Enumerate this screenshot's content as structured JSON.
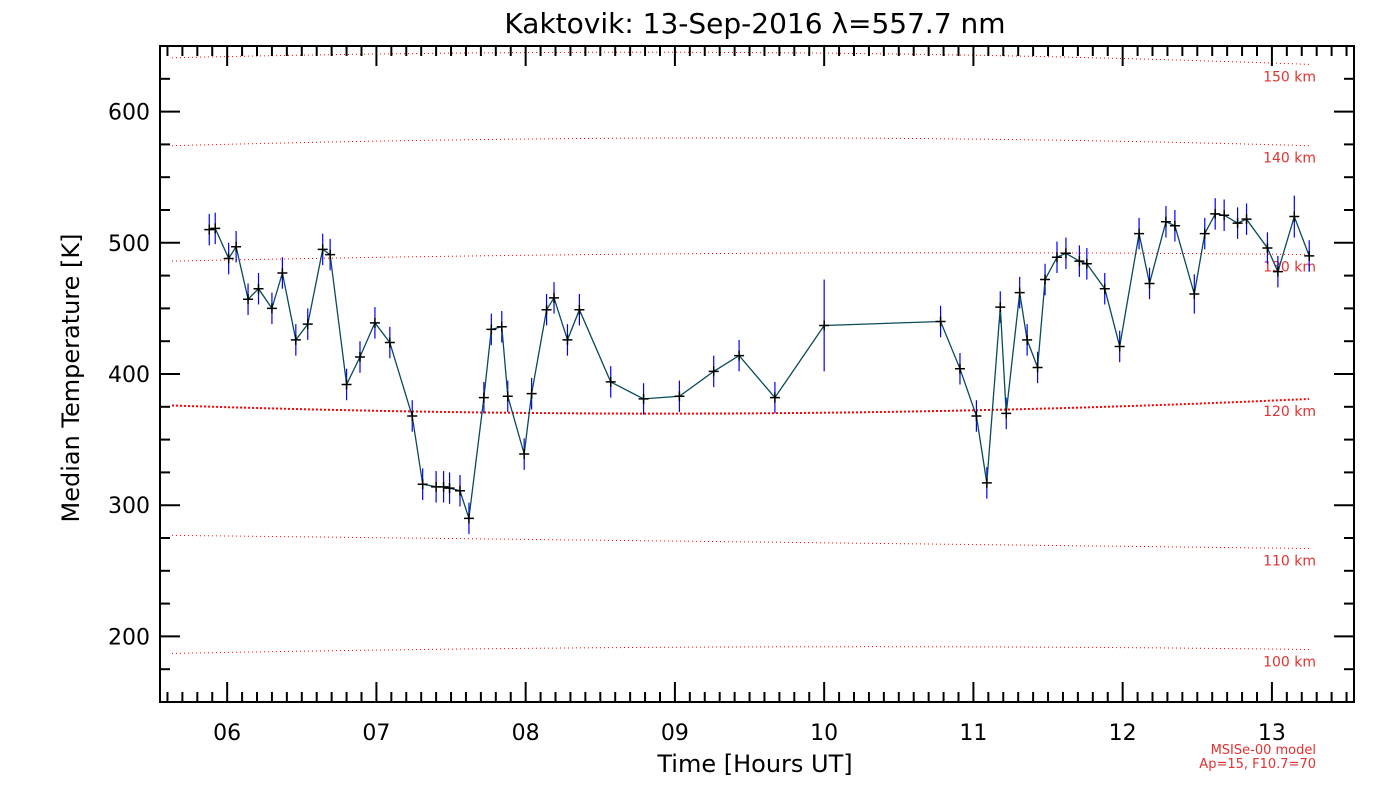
{
  "chart_data": {
    "type": "line",
    "title": "Kaktovik: 13-Sep-2016 λ=557.7 nm",
    "xlabel": "Time [Hours UT]",
    "ylabel": "Median Temperature [K]",
    "xlim": [
      5.55,
      13.55
    ],
    "ylim": [
      150,
      650
    ],
    "x_ticks": [
      6,
      7,
      8,
      9,
      10,
      11,
      12,
      13
    ],
    "x_tick_labels": [
      "06",
      "07",
      "08",
      "09",
      "10",
      "11",
      "12",
      "13"
    ],
    "y_ticks": [
      200,
      300,
      400,
      500,
      600
    ],
    "y_tick_labels": [
      "200",
      "300",
      "400",
      "500",
      "600"
    ],
    "grid": false,
    "colors": {
      "line": "#0a4a5a",
      "errorbar": "#0000ff",
      "marker": "#000000",
      "model": "#ff0000",
      "model_label": "#e23232"
    },
    "series": [
      {
        "x": [
          5.88,
          5.92,
          6.01,
          6.06,
          6.14,
          6.21,
          6.3,
          6.37,
          6.46,
          6.54,
          6.64,
          6.69,
          6.8,
          6.89,
          6.99,
          7.09,
          7.24,
          7.31,
          7.4,
          7.45,
          7.49,
          7.56,
          7.62,
          7.72,
          7.77,
          7.84,
          7.88,
          7.99,
          8.04,
          8.14,
          8.19,
          8.28,
          8.36,
          8.57,
          8.79,
          9.03,
          9.26,
          9.43,
          9.67,
          10.0,
          10.78,
          10.91,
          11.02,
          11.09,
          11.18,
          11.22,
          11.31,
          11.36,
          11.43,
          11.48,
          11.56,
          11.62,
          11.71,
          11.76,
          11.88,
          11.98,
          12.11,
          12.18,
          12.29,
          12.35,
          12.48,
          12.55,
          12.62,
          12.68,
          12.77,
          12.83,
          12.97,
          13.04,
          13.15,
          13.25
        ],
        "y": [
          510,
          511,
          488,
          497,
          457,
          465,
          450,
          477,
          426,
          438,
          495,
          491,
          392,
          413,
          439,
          424,
          368,
          316,
          314,
          314,
          313,
          311,
          290,
          382,
          434,
          436,
          383,
          339,
          385,
          449,
          458,
          426,
          449,
          394,
          381,
          383,
          402,
          414,
          382,
          437,
          440,
          404,
          368,
          317,
          451,
          370,
          462,
          426,
          405,
          472,
          489,
          492,
          486,
          484,
          465,
          421,
          507,
          469,
          516,
          513,
          461,
          507,
          522,
          521,
          515,
          518,
          496,
          478,
          520,
          490
        ],
        "err": [
          12,
          12,
          12,
          12,
          12,
          12,
          12,
          12,
          12,
          12,
          12,
          12,
          12,
          12,
          12,
          12,
          12,
          12,
          12,
          12,
          12,
          12,
          12,
          12,
          12,
          12,
          12,
          12,
          12,
          12,
          12,
          12,
          12,
          12,
          12,
          12,
          12,
          12,
          12,
          35,
          12,
          12,
          12,
          12,
          12,
          12,
          12,
          12,
          12,
          12,
          12,
          12,
          12,
          12,
          12,
          12,
          12,
          12,
          12,
          12,
          15,
          12,
          12,
          12,
          12,
          12,
          12,
          12,
          16,
          12
        ]
      }
    ],
    "model_altitudes": [
      {
        "label": "150 km",
        "y": [
          641,
          645,
          636
        ]
      },
      {
        "label": "140 km",
        "y": [
          574,
          580,
          574
        ]
      },
      {
        "label": "130 km",
        "y": [
          486,
          492,
          491
        ]
      },
      {
        "label": "120 km",
        "y": [
          376,
          370,
          381
        ]
      },
      {
        "label": "110 km",
        "y": [
          277,
          272,
          267
        ]
      },
      {
        "label": "100 km",
        "y": [
          187,
          192,
          190
        ]
      }
    ],
    "model_note": [
      "MSISe-00 model",
      "Ap=15, F10.7=70"
    ]
  }
}
